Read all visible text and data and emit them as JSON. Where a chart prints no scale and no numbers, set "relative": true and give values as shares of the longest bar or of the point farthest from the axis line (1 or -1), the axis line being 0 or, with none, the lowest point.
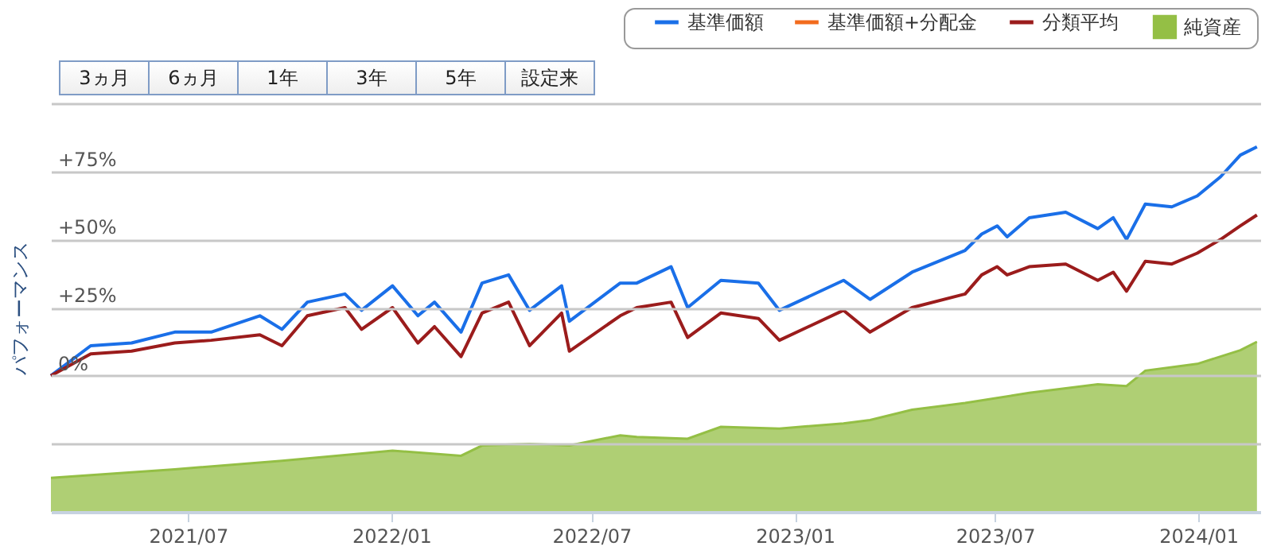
{
  "chart_data": [
    {
      "type": "line",
      "ylabel": "パフォーマンス",
      "annotations": [
        "3ヵ月",
        "6ヵ月",
        "1年",
        "3年",
        "5年",
        "設定来"
      ],
      "x": [
        "2021-02-27",
        "2021-04-04",
        "2021-05-11",
        "2021-06-19",
        "2021-07-22",
        "2021-09-04",
        "2021-09-24",
        "2021-10-17",
        "2021-11-20",
        "2021-12-05",
        "2022-01-02",
        "2022-01-25",
        "2022-02-09",
        "2022-03-05",
        "2022-03-24",
        "2022-04-17",
        "2022-05-06",
        "2022-06-04",
        "2022-06-11",
        "2022-07-27",
        "2022-08-11",
        "2022-09-11",
        "2022-09-26",
        "2022-10-26",
        "2022-11-29",
        "2022-12-18",
        "2023-02-14",
        "2023-03-10",
        "2023-04-17",
        "2023-06-04",
        "2023-06-19",
        "2023-07-03",
        "2023-07-12",
        "2023-08-01",
        "2023-09-03",
        "2023-10-02",
        "2023-10-16",
        "2023-10-28",
        "2023-11-14",
        "2023-12-08",
        "2023-12-31",
        "2024-01-21",
        "2024-02-08",
        "2024-02-23"
      ],
      "series": [
        {
          "name": "基準価額",
          "color": "#1a6fe8",
          "values": [
            0,
            11,
            12,
            16,
            16,
            22,
            17,
            27,
            30,
            24,
            33,
            22,
            27,
            16,
            34,
            37,
            24,
            33,
            20,
            34,
            34,
            40,
            25,
            35,
            34,
            24,
            35,
            28,
            38,
            46,
            52,
            55,
            51,
            58,
            60,
            54,
            58,
            50,
            63,
            62,
            66,
            73,
            81,
            84
          ]
        },
        {
          "name": "基準価額+分配金",
          "color": "#f26b1d",
          "values": [
            null,
            null,
            null,
            null,
            null,
            null,
            null,
            null,
            null,
            null,
            null,
            null,
            null,
            null,
            null,
            null,
            null,
            null,
            null,
            null,
            null,
            null,
            null,
            null,
            null,
            null,
            null,
            null,
            null,
            null,
            null,
            null,
            null,
            null,
            null,
            null,
            null,
            null,
            null,
            null,
            null,
            null,
            null,
            null
          ]
        },
        {
          "name": "分類平均",
          "color": "#9b1c1c",
          "values": [
            0,
            8,
            9,
            12,
            13,
            15,
            11,
            22,
            25,
            17,
            25,
            12,
            18,
            7,
            23,
            27,
            11,
            23,
            9,
            22,
            25,
            27,
            14,
            23,
            21,
            13,
            24,
            16,
            25,
            30,
            37,
            40,
            37,
            40,
            41,
            35,
            38,
            31,
            42,
            41,
            45,
            50,
            55,
            59
          ]
        }
      ],
      "xlim": [
        "2021-02-27",
        "2024-02-26"
      ],
      "xticks": [
        {
          "value": "2021-07",
          "label": "2021/07"
        },
        {
          "value": "2022-01",
          "label": "2022/01"
        },
        {
          "value": "2022-07",
          "label": "2022/07"
        },
        {
          "value": "2023-01",
          "label": "2023/01"
        },
        {
          "value": "2023-07",
          "label": "2023/07"
        },
        {
          "value": "2024-01",
          "label": "2024/01"
        }
      ],
      "ylim": [
        -50,
        100
      ],
      "yticks": [
        {
          "value": -25,
          "label": null
        },
        {
          "value": 0,
          "label": "0%"
        },
        {
          "value": 25,
          "label": "+25%"
        },
        {
          "value": 50,
          "label": "+50%"
        },
        {
          "value": 75,
          "label": "+75%"
        },
        {
          "value": 100,
          "label": null
        }
      ],
      "grid": "y",
      "legend": "top right"
    },
    {
      "type": "area",
      "relative": true,
      "x": [
        "2021-02-27",
        "2021-06-19",
        "2021-09-24",
        "2022-01-02",
        "2022-03-05",
        "2022-03-24",
        "2022-05-06",
        "2022-06-11",
        "2022-07-27",
        "2022-08-11",
        "2022-09-26",
        "2022-10-26",
        "2022-12-18",
        "2023-02-14",
        "2023-03-10",
        "2023-04-17",
        "2023-06-04",
        "2023-08-01",
        "2023-10-02",
        "2023-10-28",
        "2023-11-14",
        "2023-12-31",
        "2024-02-08",
        "2024-02-23"
      ],
      "series": [
        {
          "name": "純資産",
          "color": "#94bf45",
          "values": [
            0.2,
            0.25,
            0.3,
            0.36,
            0.33,
            0.39,
            0.4,
            0.39,
            0.45,
            0.44,
            0.43,
            0.5,
            0.49,
            0.52,
            0.54,
            0.6,
            0.64,
            0.7,
            0.75,
            0.74,
            0.83,
            0.87,
            0.95,
            1
          ]
        }
      ],
      "xlim": [
        "2021-02-27",
        "2024-02-26"
      ],
      "tick_labels": false,
      "legend": "top right"
    }
  ]
}
